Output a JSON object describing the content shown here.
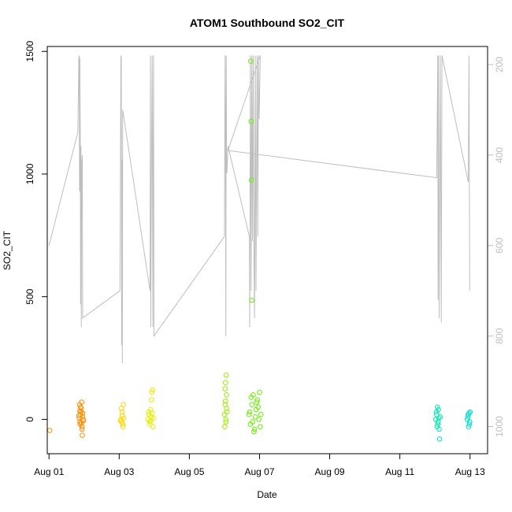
{
  "chart_data": {
    "type": "scatter",
    "title": "ATOM1 Southbound SO2_CIT",
    "xlabel": "Date",
    "ylabel": "SO2_CIT",
    "x_tick_labels": [
      "Aug 01",
      "Aug 03",
      "Aug 05",
      "Aug 07",
      "Aug 09",
      "Aug 11",
      "Aug 13"
    ],
    "x_tick_days": [
      1,
      3,
      5,
      7,
      9,
      11,
      13
    ],
    "xlim_days": [
      0.95,
      13.5
    ],
    "y_ticks": [
      0,
      500,
      1000,
      1500
    ],
    "ylim": [
      -140,
      1520
    ],
    "right_axis": {
      "color": "#bebebe",
      "reversed": true,
      "ticks": [
        200,
        400,
        600,
        800,
        1000
      ],
      "ylim": [
        1060,
        160
      ]
    },
    "grid": false,
    "legend": "none",
    "scatter_groups": [
      {
        "color": "#ff8c00",
        "points": [
          [
            1.02,
            -45
          ],
          [
            1.86,
            5
          ],
          [
            1.88,
            -10
          ],
          [
            1.9,
            20
          ],
          [
            1.92,
            45
          ],
          [
            1.94,
            -30
          ],
          [
            1.96,
            10
          ],
          [
            1.87,
            60
          ],
          [
            1.93,
            70
          ],
          [
            1.95,
            -65
          ],
          [
            1.89,
            -20
          ],
          [
            1.91,
            30
          ],
          [
            1.97,
            0
          ],
          [
            1.85,
            15
          ],
          [
            1.98,
            -5
          ],
          [
            1.9,
            50
          ],
          [
            1.94,
            -40
          ],
          [
            1.88,
            35
          ],
          [
            1.92,
            -15
          ],
          [
            1.96,
            25
          ]
        ]
      },
      {
        "color": "#ffd700",
        "points": [
          [
            3.05,
            0
          ],
          [
            3.08,
            30
          ],
          [
            3.1,
            -20
          ],
          [
            3.12,
            60
          ],
          [
            3.07,
            -10
          ],
          [
            3.09,
            15
          ],
          [
            3.11,
            -30
          ],
          [
            3.06,
            45
          ],
          [
            3.13,
            5
          ],
          [
            3.04,
            -5
          ]
        ]
      },
      {
        "color": "#e6f000",
        "points": [
          [
            3.82,
            0
          ],
          [
            3.85,
            20
          ],
          [
            3.88,
            -20
          ],
          [
            3.9,
            40
          ],
          [
            3.92,
            80
          ],
          [
            3.95,
            120
          ],
          [
            3.93,
            110
          ],
          [
            3.87,
            -10
          ],
          [
            3.91,
            10
          ],
          [
            3.96,
            -30
          ],
          [
            3.84,
            30
          ],
          [
            3.89,
            -5
          ],
          [
            3.94,
            25
          ],
          [
            3.97,
            5
          ]
        ]
      },
      {
        "color": "#9aef00",
        "points": [
          [
            6,
            20
          ],
          [
            6.02,
            60
          ],
          [
            6.04,
            0
          ],
          [
            6.06,
            100
          ],
          [
            6.03,
            150
          ],
          [
            6.05,
            180
          ],
          [
            6.01,
            -30
          ],
          [
            6.07,
            30
          ],
          [
            6.02,
            125
          ],
          [
            6.04,
            -10
          ],
          [
            6.06,
            45
          ],
          [
            6.03,
            75
          ]
        ]
      },
      {
        "color": "#66f000",
        "points": [
          [
            6.75,
            1460
          ],
          [
            6.76,
            1215
          ],
          [
            6.77,
            975
          ],
          [
            6.78,
            485
          ],
          [
            6.7,
            20
          ],
          [
            6.74,
            -20
          ],
          [
            6.78,
            60
          ],
          [
            6.82,
            100
          ],
          [
            6.86,
            -40
          ],
          [
            6.9,
            40
          ],
          [
            6.94,
            80
          ],
          [
            6.98,
            0
          ],
          [
            7.02,
            -30
          ],
          [
            6.72,
            30
          ],
          [
            6.8,
            -10
          ],
          [
            6.88,
            10
          ],
          [
            6.96,
            50
          ],
          [
            7.04,
            20
          ],
          [
            6.84,
            -50
          ],
          [
            6.92,
            70
          ],
          [
            6.76,
            90
          ],
          [
            7,
            110
          ]
        ]
      },
      {
        "color": "#00e8b0",
        "points": [
          [
            12.02,
            0
          ],
          [
            12.05,
            20
          ],
          [
            12.08,
            -20
          ],
          [
            12.1,
            40
          ],
          [
            12.12,
            -40
          ],
          [
            12.15,
            10
          ],
          [
            12.07,
            50
          ],
          [
            12.13,
            -80
          ],
          [
            12.04,
            30
          ],
          [
            12.09,
            -10
          ],
          [
            12.11,
            5
          ],
          [
            12.06,
            -30
          ]
        ]
      },
      {
        "color": "#00dccc",
        "points": [
          [
            12.92,
            0
          ],
          [
            12.95,
            20
          ],
          [
            12.98,
            -20
          ],
          [
            13,
            30
          ],
          [
            12.96,
            -30
          ],
          [
            12.94,
            10
          ],
          [
            12.99,
            -10
          ],
          [
            12.97,
            25
          ]
        ]
      }
    ],
    "line_series": {
      "color": "#bebebe",
      "axis": "right",
      "points": [
        [
          1,
          600
        ],
        [
          1.82,
          350
        ],
        [
          1.85,
          185
        ],
        [
          1.86,
          180
        ],
        [
          1.87,
          480
        ],
        [
          1.88,
          185
        ],
        [
          1.89,
          360
        ],
        [
          1.9,
          730
        ],
        [
          1.91,
          380
        ],
        [
          1.92,
          780
        ],
        [
          1.93,
          420
        ],
        [
          1.95,
          400
        ],
        [
          1.96,
          760
        ],
        [
          3.02,
          700
        ],
        [
          3.05,
          185
        ],
        [
          3.06,
          180
        ],
        [
          3.07,
          820
        ],
        [
          3.08,
          410
        ],
        [
          3.09,
          860
        ],
        [
          3.1,
          300
        ],
        [
          3.88,
          700
        ],
        [
          3.89,
          180
        ],
        [
          3.9,
          780
        ],
        [
          3.92,
          420
        ],
        [
          3.94,
          180
        ],
        [
          3.96,
          780
        ],
        [
          3.97,
          420
        ],
        [
          3.98,
          180
        ],
        [
          3.99,
          800
        ],
        [
          6,
          580
        ],
        [
          6.01,
          340
        ],
        [
          6.02,
          180
        ],
        [
          6.03,
          400
        ],
        [
          6.04,
          800
        ],
        [
          6.05,
          180
        ],
        [
          6.06,
          400
        ],
        [
          6.07,
          440
        ],
        [
          6.1,
          380
        ],
        [
          6.71,
          580
        ],
        [
          6.72,
          780
        ],
        [
          6.74,
          180
        ],
        [
          6.76,
          700
        ],
        [
          6.78,
          180
        ],
        [
          6.8,
          590
        ],
        [
          6.82,
          180
        ],
        [
          6.84,
          640
        ],
        [
          6.86,
          760
        ],
        [
          6.88,
          180
        ],
        [
          6.9,
          700
        ],
        [
          6.93,
          180
        ],
        [
          6.95,
          580
        ],
        [
          6.97,
          180
        ],
        [
          6.99,
          320
        ],
        [
          7.02,
          180
        ],
        [
          6.1,
          390
        ],
        [
          12.05,
          450
        ],
        [
          12.08,
          180
        ],
        [
          12.09,
          720
        ],
        [
          12.1,
          180
        ],
        [
          12.12,
          760
        ],
        [
          12.15,
          180
        ],
        [
          12.18,
          770
        ],
        [
          12.2,
          180
        ],
        [
          12.95,
          460
        ],
        [
          12.97,
          180
        ],
        [
          12.99,
          700
        ]
      ]
    }
  }
}
